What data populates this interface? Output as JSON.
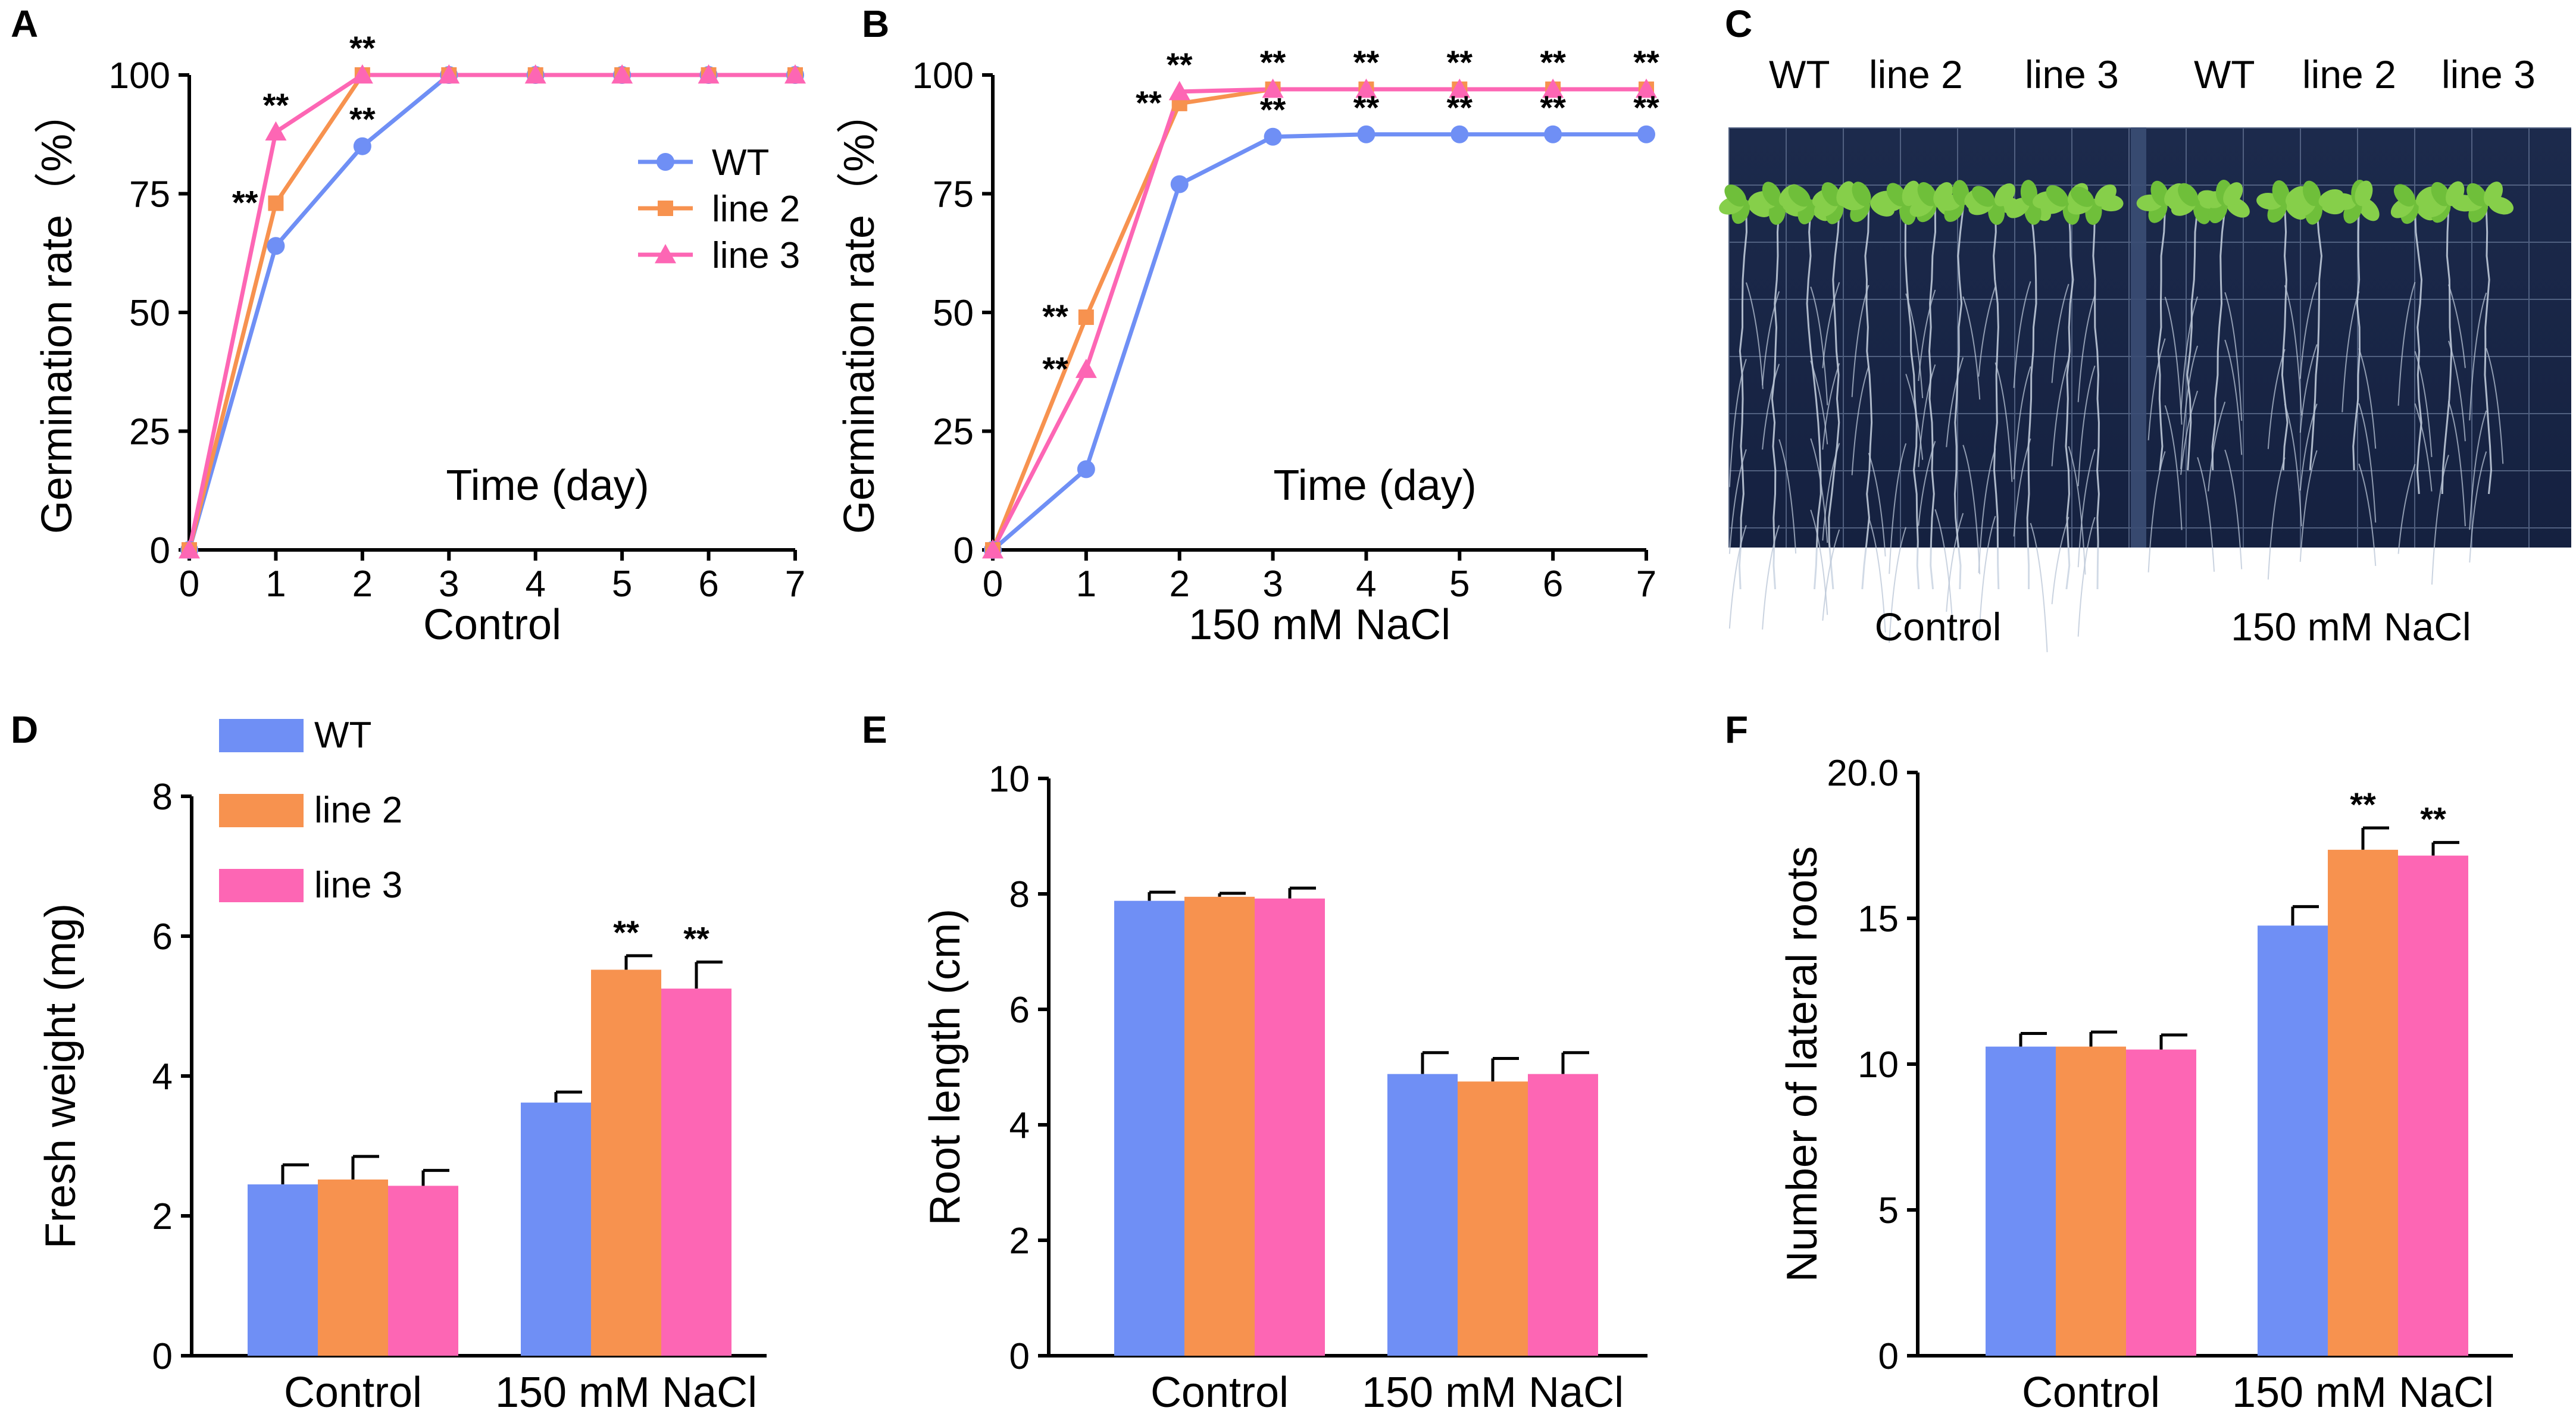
{
  "colors": {
    "WT": "#6f8ff5",
    "line 2": "#f7924f",
    "line 3": "#fd66b4"
  },
  "panels": {
    "A": "A",
    "B": "B",
    "C": "C",
    "D": "D",
    "E": "E",
    "F": "F"
  },
  "photo": {
    "top_labels": [
      "WT",
      "line 2",
      "line 3",
      "WT",
      "line 2",
      "line 3"
    ],
    "conditions": [
      "Control",
      "150 mM NaCl"
    ]
  },
  "chart_data": [
    {
      "id": "A",
      "type": "line",
      "title": "",
      "ylabel": "Germination rate（%）",
      "xlabel": "Control",
      "annotation": "Time (day)",
      "x": [
        0,
        1,
        2,
        3,
        4,
        5,
        6,
        7
      ],
      "xlim": [
        0,
        7
      ],
      "ylim": [
        0,
        100
      ],
      "yticks": [
        0,
        25,
        50,
        75,
        100
      ],
      "legend": [
        "WT",
        "line 2",
        "line 3"
      ],
      "series": [
        {
          "name": "WT",
          "marker": "circle",
          "values": [
            0,
            64,
            85,
            100,
            100,
            100,
            100,
            100
          ]
        },
        {
          "name": "line 2",
          "marker": "square",
          "values": [
            0,
            73,
            100,
            100,
            100,
            100,
            100,
            100
          ]
        },
        {
          "name": "line 3",
          "marker": "triangle",
          "values": [
            0,
            88,
            100,
            100,
            100,
            100,
            100,
            100
          ]
        }
      ],
      "significance": [
        {
          "text": "**",
          "x": 1,
          "series": "line 3",
          "pos": "above"
        },
        {
          "text": "**",
          "x": 1,
          "series": "line 2",
          "pos": "left"
        },
        {
          "text": "**",
          "x": 2,
          "series": "line 2",
          "pos": "above"
        },
        {
          "text": "**",
          "x": 2,
          "series": "WT",
          "pos": "above"
        }
      ]
    },
    {
      "id": "B",
      "type": "line",
      "title": "",
      "ylabel": "Germination rate（%）",
      "xlabel": "150 mM NaCl",
      "annotation": "Time (day)",
      "x": [
        0,
        1,
        2,
        3,
        4,
        5,
        6,
        7
      ],
      "xlim": [
        0,
        7
      ],
      "ylim": [
        0,
        100
      ],
      "yticks": [
        0,
        25,
        50,
        75,
        100
      ],
      "series": [
        {
          "name": "WT",
          "marker": "circle",
          "values": [
            0,
            17,
            77,
            87,
            87.5,
            87.5,
            87.5,
            87.5
          ]
        },
        {
          "name": "line 2",
          "marker": "square",
          "values": [
            0,
            49,
            94,
            97,
            97,
            97,
            97,
            97
          ]
        },
        {
          "name": "line 3",
          "marker": "triangle",
          "values": [
            0,
            38,
            96.5,
            97,
            97,
            97,
            97,
            97
          ]
        }
      ],
      "significance": [
        {
          "text": "**",
          "x": 1,
          "series": "line 2",
          "pos": "left"
        },
        {
          "text": "**",
          "x": 1,
          "series": "line 3",
          "pos": "left"
        },
        {
          "text": "**",
          "x": 2,
          "series": "line 3",
          "pos": "above"
        },
        {
          "text": "**",
          "x": 2,
          "series": "line 2",
          "pos": "left"
        },
        {
          "text": "**",
          "x": 3,
          "series": "line 2",
          "pos": "above"
        },
        {
          "text": "**",
          "x": 4,
          "series": "line 2",
          "pos": "above"
        },
        {
          "text": "**",
          "x": 5,
          "series": "line 2",
          "pos": "above"
        },
        {
          "text": "**",
          "x": 6,
          "series": "line 2",
          "pos": "above"
        },
        {
          "text": "**",
          "x": 7,
          "series": "line 2",
          "pos": "above"
        },
        {
          "text": "**",
          "x": 3,
          "series": "WT",
          "pos": "above"
        },
        {
          "text": "**",
          "x": 4,
          "series": "WT",
          "pos": "above"
        },
        {
          "text": "**",
          "x": 5,
          "series": "WT",
          "pos": "above"
        },
        {
          "text": "**",
          "x": 6,
          "series": "WT",
          "pos": "above"
        },
        {
          "text": "**",
          "x": 7,
          "series": "WT",
          "pos": "above"
        }
      ]
    },
    {
      "id": "D",
      "type": "bar",
      "ylabel": "Fresh weight (mg)",
      "categories": [
        "Control",
        "150 mM NaCl"
      ],
      "ylim": [
        0,
        8
      ],
      "yticks": [
        0,
        2,
        4,
        6,
        8
      ],
      "legend": [
        "WT",
        "line 2",
        "line 3"
      ],
      "series": [
        {
          "name": "WT",
          "values": [
            2.45,
            3.62
          ],
          "errors": [
            0.28,
            0.15
          ]
        },
        {
          "name": "line 2",
          "values": [
            2.52,
            5.52
          ],
          "errors": [
            0.33,
            0.2
          ]
        },
        {
          "name": "line 3",
          "values": [
            2.43,
            5.25
          ],
          "errors": [
            0.22,
            0.38
          ]
        }
      ],
      "significance": [
        {
          "text": "**",
          "category": 1,
          "series": "line 2"
        },
        {
          "text": "**",
          "category": 1,
          "series": "line 3"
        }
      ]
    },
    {
      "id": "E",
      "type": "bar",
      "ylabel": "Root length (cm)",
      "categories": [
        "Control",
        "150 mM NaCl"
      ],
      "ylim": [
        0,
        10
      ],
      "yticks": [
        0,
        2,
        4,
        6,
        8,
        10
      ],
      "series": [
        {
          "name": "WT",
          "values": [
            7.88,
            4.88
          ],
          "errors": [
            0.15,
            0.37
          ]
        },
        {
          "name": "line 2",
          "values": [
            7.95,
            4.75
          ],
          "errors": [
            0.06,
            0.4
          ]
        },
        {
          "name": "line 3",
          "values": [
            7.92,
            4.88
          ],
          "errors": [
            0.18,
            0.37
          ]
        }
      ],
      "significance": []
    },
    {
      "id": "F",
      "type": "bar",
      "ylabel": "Number of lateral roots",
      "categories": [
        "Control",
        "150 mM NaCl"
      ],
      "ylim": [
        0,
        20
      ],
      "yticks": [
        0,
        5,
        10,
        15,
        20
      ],
      "yticklabels": [
        "0",
        "5",
        "10",
        "15",
        "20.0"
      ],
      "series": [
        {
          "name": "WT",
          "values": [
            10.6,
            14.75
          ],
          "errors": [
            0.45,
            0.65
          ]
        },
        {
          "name": "line 2",
          "values": [
            10.6,
            17.35
          ],
          "errors": [
            0.5,
            0.75
          ]
        },
        {
          "name": "line 3",
          "values": [
            10.5,
            17.15
          ],
          "errors": [
            0.5,
            0.45
          ]
        }
      ],
      "significance": [
        {
          "text": "**",
          "category": 1,
          "series": "line 2"
        },
        {
          "text": "**",
          "category": 1,
          "series": "line 3"
        }
      ]
    }
  ]
}
